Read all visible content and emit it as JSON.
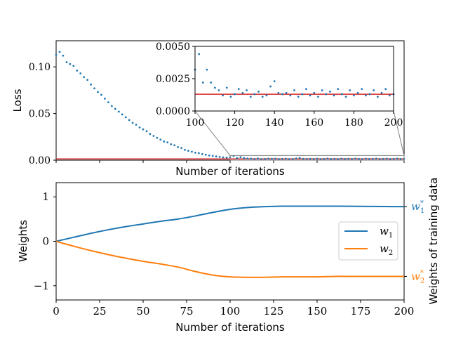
{
  "chart_data": [
    {
      "type": "scatter",
      "title": "",
      "xlabel": "Number of iterations",
      "ylabel": "Loss",
      "xlim": [
        0,
        200
      ],
      "ylim": [
        0,
        0.128
      ],
      "ytick_labels": [
        "0.00",
        "0.05",
        "0.10"
      ],
      "yticks": [
        0,
        0.05,
        0.1
      ],
      "xticks": [
        0,
        25,
        50,
        75,
        100,
        125,
        150,
        175,
        200
      ],
      "reference_line": {
        "value": 0.0013,
        "color": "#d62728"
      },
      "point_color": "#1f77b4",
      "series": [
        {
          "name": "loss",
          "x": [
            0,
            2,
            4,
            6,
            8,
            10,
            12,
            14,
            16,
            18,
            20,
            22,
            24,
            26,
            28,
            30,
            32,
            34,
            36,
            38,
            40,
            42,
            44,
            46,
            48,
            50,
            52,
            54,
            56,
            58,
            60,
            62,
            64,
            66,
            68,
            70,
            72,
            74,
            76,
            78,
            80,
            82,
            84,
            86,
            88,
            90,
            92,
            94,
            96,
            98,
            100,
            102,
            104,
            106,
            108,
            110,
            112,
            114,
            116,
            118,
            120,
            122,
            124,
            126,
            128,
            130,
            132,
            134,
            136,
            138,
            140,
            142,
            144,
            146,
            148,
            150,
            152,
            154,
            156,
            158,
            160,
            162,
            164,
            166,
            168,
            170,
            172,
            174,
            176,
            178,
            180,
            182,
            184,
            186,
            188,
            190,
            192,
            194,
            196,
            198,
            200
          ],
          "values": [
            0.113,
            0.116,
            0.112,
            0.105,
            0.103,
            0.101,
            0.096,
            0.093,
            0.089,
            0.086,
            0.081,
            0.077,
            0.073,
            0.07,
            0.066,
            0.062,
            0.058,
            0.055,
            0.052,
            0.049,
            0.046,
            0.043,
            0.04,
            0.038,
            0.035,
            0.033,
            0.031,
            0.028,
            0.026,
            0.024,
            0.022,
            0.02,
            0.019,
            0.017,
            0.016,
            0.014,
            0.013,
            0.011,
            0.01,
            0.009,
            0.008,
            0.0075,
            0.0065,
            0.0058,
            0.005,
            0.0045,
            0.004,
            0.0035,
            0.003,
            0.0027,
            0.0032,
            0.0044,
            0.0022,
            0.0032,
            0.0022,
            0.0018,
            0.0016,
            0.0012,
            0.0018,
            0.0011,
            0.0013,
            0.0017,
            0.0014,
            0.0016,
            0.0011,
            0.0013,
            0.0015,
            0.0011,
            0.0012,
            0.0019,
            0.0023,
            0.0014,
            0.0013,
            0.0014,
            0.0012,
            0.0016,
            0.0011,
            0.0013,
            0.0017,
            0.0012,
            0.0014,
            0.0011,
            0.0016,
            0.0013,
            0.0015,
            0.0012,
            0.0017,
            0.0013,
            0.0011,
            0.0016,
            0.0012,
            0.0014,
            0.0017,
            0.0012,
            0.0013,
            0.0016,
            0.0011,
            0.0014,
            0.0017,
            0.0012,
            0.0013
          ]
        }
      ]
    },
    {
      "type": "scatter",
      "title": "",
      "inset_of": "Loss",
      "xlim": [
        100,
        200
      ],
      "ylim": [
        0,
        0.005
      ],
      "ytick_labels": [
        "0.0000",
        "0.0025",
        "0.0050"
      ],
      "yticks": [
        0,
        0.0025,
        0.005
      ],
      "xtick_labels": [
        "100",
        "120",
        "140",
        "160",
        "180",
        "200"
      ],
      "xticks": [
        100,
        120,
        140,
        160,
        180,
        200
      ],
      "reference_line": {
        "value": 0.0013,
        "color": "#d62728"
      },
      "point_color": "#1f77b4",
      "zoom_rect": {
        "x": [
          100,
          200
        ],
        "y": [
          0,
          0.005
        ]
      }
    },
    {
      "type": "line",
      "title": "",
      "xlabel": "Number of iterations",
      "ylabel": "Weights",
      "ylabel_right": "Weights of training data",
      "xlim": [
        0,
        200
      ],
      "ylim": [
        -1.32,
        1.32
      ],
      "yticks": [
        -1,
        0,
        1
      ],
      "ytick_labels": [
        "−1",
        "0",
        "1"
      ],
      "xticks": [
        0,
        25,
        50,
        75,
        100,
        125,
        150,
        175,
        200
      ],
      "xtick_labels": [
        "0",
        "25",
        "50",
        "75",
        "100",
        "125",
        "150",
        "175",
        "200"
      ],
      "legend": {
        "placement": "center-right",
        "entries": [
          "w1",
          "w2"
        ]
      },
      "series": [
        {
          "name": "w1",
          "label_main": "w",
          "label_sub": "1",
          "color": "#1f77b4",
          "x": [
            0,
            10,
            20,
            30,
            40,
            50,
            60,
            70,
            80,
            90,
            100,
            110,
            120,
            130,
            140,
            150,
            160,
            170,
            180,
            190,
            200
          ],
          "values": [
            0.0,
            0.09,
            0.18,
            0.26,
            0.33,
            0.39,
            0.45,
            0.5,
            0.57,
            0.65,
            0.72,
            0.76,
            0.78,
            0.79,
            0.79,
            0.79,
            0.79,
            0.788,
            0.785,
            0.782,
            0.78
          ]
        },
        {
          "name": "w2",
          "label_main": "w",
          "label_sub": "2",
          "color": "#ff7f0e",
          "x": [
            0,
            10,
            20,
            30,
            40,
            50,
            60,
            70,
            80,
            90,
            100,
            110,
            120,
            130,
            140,
            150,
            160,
            170,
            180,
            190,
            200
          ],
          "values": [
            0.0,
            -0.11,
            -0.21,
            -0.3,
            -0.38,
            -0.45,
            -0.51,
            -0.58,
            -0.68,
            -0.76,
            -0.8,
            -0.81,
            -0.81,
            -0.8,
            -0.8,
            -0.8,
            -0.79,
            -0.79,
            -0.79,
            -0.79,
            -0.79
          ]
        }
      ],
      "targets": [
        {
          "name": "w1*",
          "label_main": "w",
          "label_sub": "1",
          "label_sup": "*",
          "value": 0.78,
          "color": "#1f77b4"
        },
        {
          "name": "w2*",
          "label_main": "w",
          "label_sub": "2",
          "label_sup": "*",
          "value": -0.79,
          "color": "#ff7f0e"
        }
      ]
    }
  ]
}
